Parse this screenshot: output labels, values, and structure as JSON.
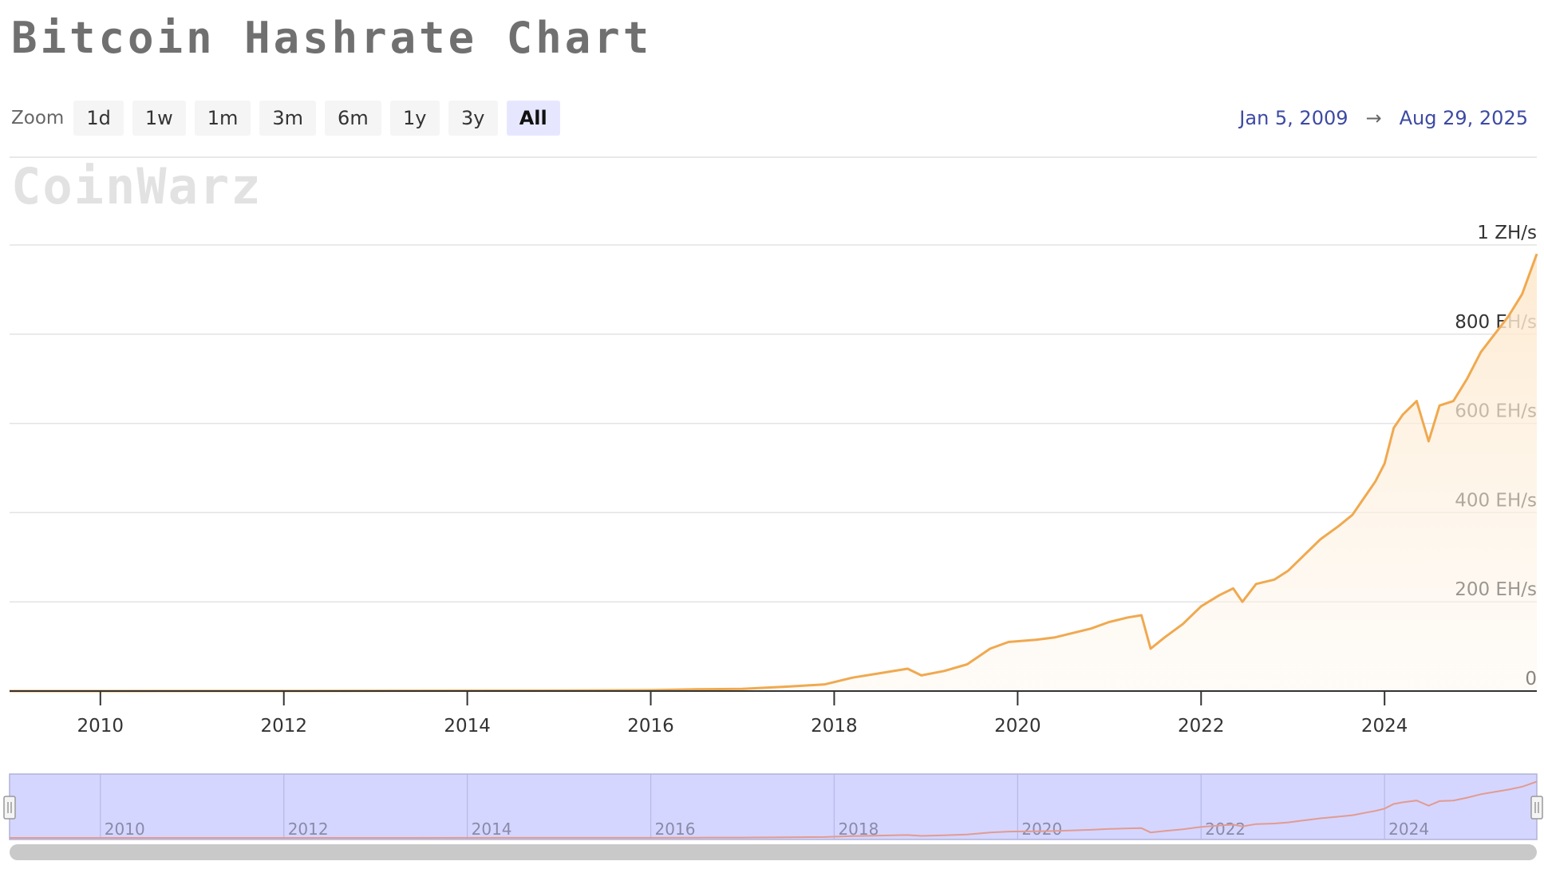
{
  "header": {
    "title": "Bitcoin Hashrate Chart",
    "watermark": "CoinWarz"
  },
  "zoom": {
    "label": "Zoom",
    "buttons": [
      "1d",
      "1w",
      "1m",
      "3m",
      "6m",
      "1y",
      "3y",
      "All"
    ],
    "active": "All"
  },
  "range": {
    "from": "Jan 5, 2009",
    "arrow": "→",
    "to": "Aug 29, 2025"
  },
  "colors": {
    "line": "#f0a94f",
    "area_top": "#fde8cc",
    "navigator_fill": "#d4d6ff",
    "navigator_line": "#e29b90",
    "range_text": "#3d4aa3"
  },
  "chart_data": {
    "type": "area",
    "xlim": [
      2009.01,
      2025.66
    ],
    "ylim": [
      0,
      1000
    ],
    "y_unit": "EH/s",
    "y_ticks": [
      {
        "value": 0,
        "label": "0"
      },
      {
        "value": 200,
        "label": "200 EH/s"
      },
      {
        "value": 400,
        "label": "400 EH/s"
      },
      {
        "value": 600,
        "label": "600 EH/s"
      },
      {
        "value": 800,
        "label": "800 EH/s"
      },
      {
        "value": 1000,
        "label": "1 ZH/s"
      }
    ],
    "x_ticks": [
      "2010",
      "2012",
      "2014",
      "2016",
      "2018",
      "2020",
      "2022",
      "2024"
    ],
    "grid": true,
    "legend": "none",
    "series": [
      {
        "x": [
          2009.01,
          2012.0,
          2015.0,
          2016.0,
          2016.5,
          2017.0,
          2017.5,
          2017.9,
          2018.2,
          2018.5,
          2018.8,
          2018.95,
          2019.2,
          2019.45,
          2019.7,
          2019.9,
          2020.2,
          2020.4,
          2020.6,
          2020.8,
          2021.0,
          2021.2,
          2021.35,
          2021.45,
          2021.6,
          2021.8,
          2022.0,
          2022.2,
          2022.35,
          2022.45,
          2022.6,
          2022.8,
          2022.95,
          2023.1,
          2023.3,
          2023.5,
          2023.65,
          2023.8,
          2023.9,
          2024.0,
          2024.1,
          2024.2,
          2024.35,
          2024.48,
          2024.6,
          2024.75,
          2024.9,
          2025.05,
          2025.2,
          2025.35,
          2025.5,
          2025.66
        ],
        "y": [
          0,
          0.1,
          1,
          2,
          4,
          5,
          10,
          15,
          30,
          40,
          50,
          35,
          45,
          60,
          95,
          110,
          115,
          120,
          130,
          140,
          155,
          165,
          170,
          95,
          120,
          150,
          190,
          215,
          230,
          200,
          240,
          250,
          270,
          300,
          340,
          370,
          395,
          440,
          470,
          510,
          590,
          620,
          650,
          560,
          640,
          650,
          700,
          760,
          800,
          840,
          890,
          980
        ]
      }
    ]
  }
}
